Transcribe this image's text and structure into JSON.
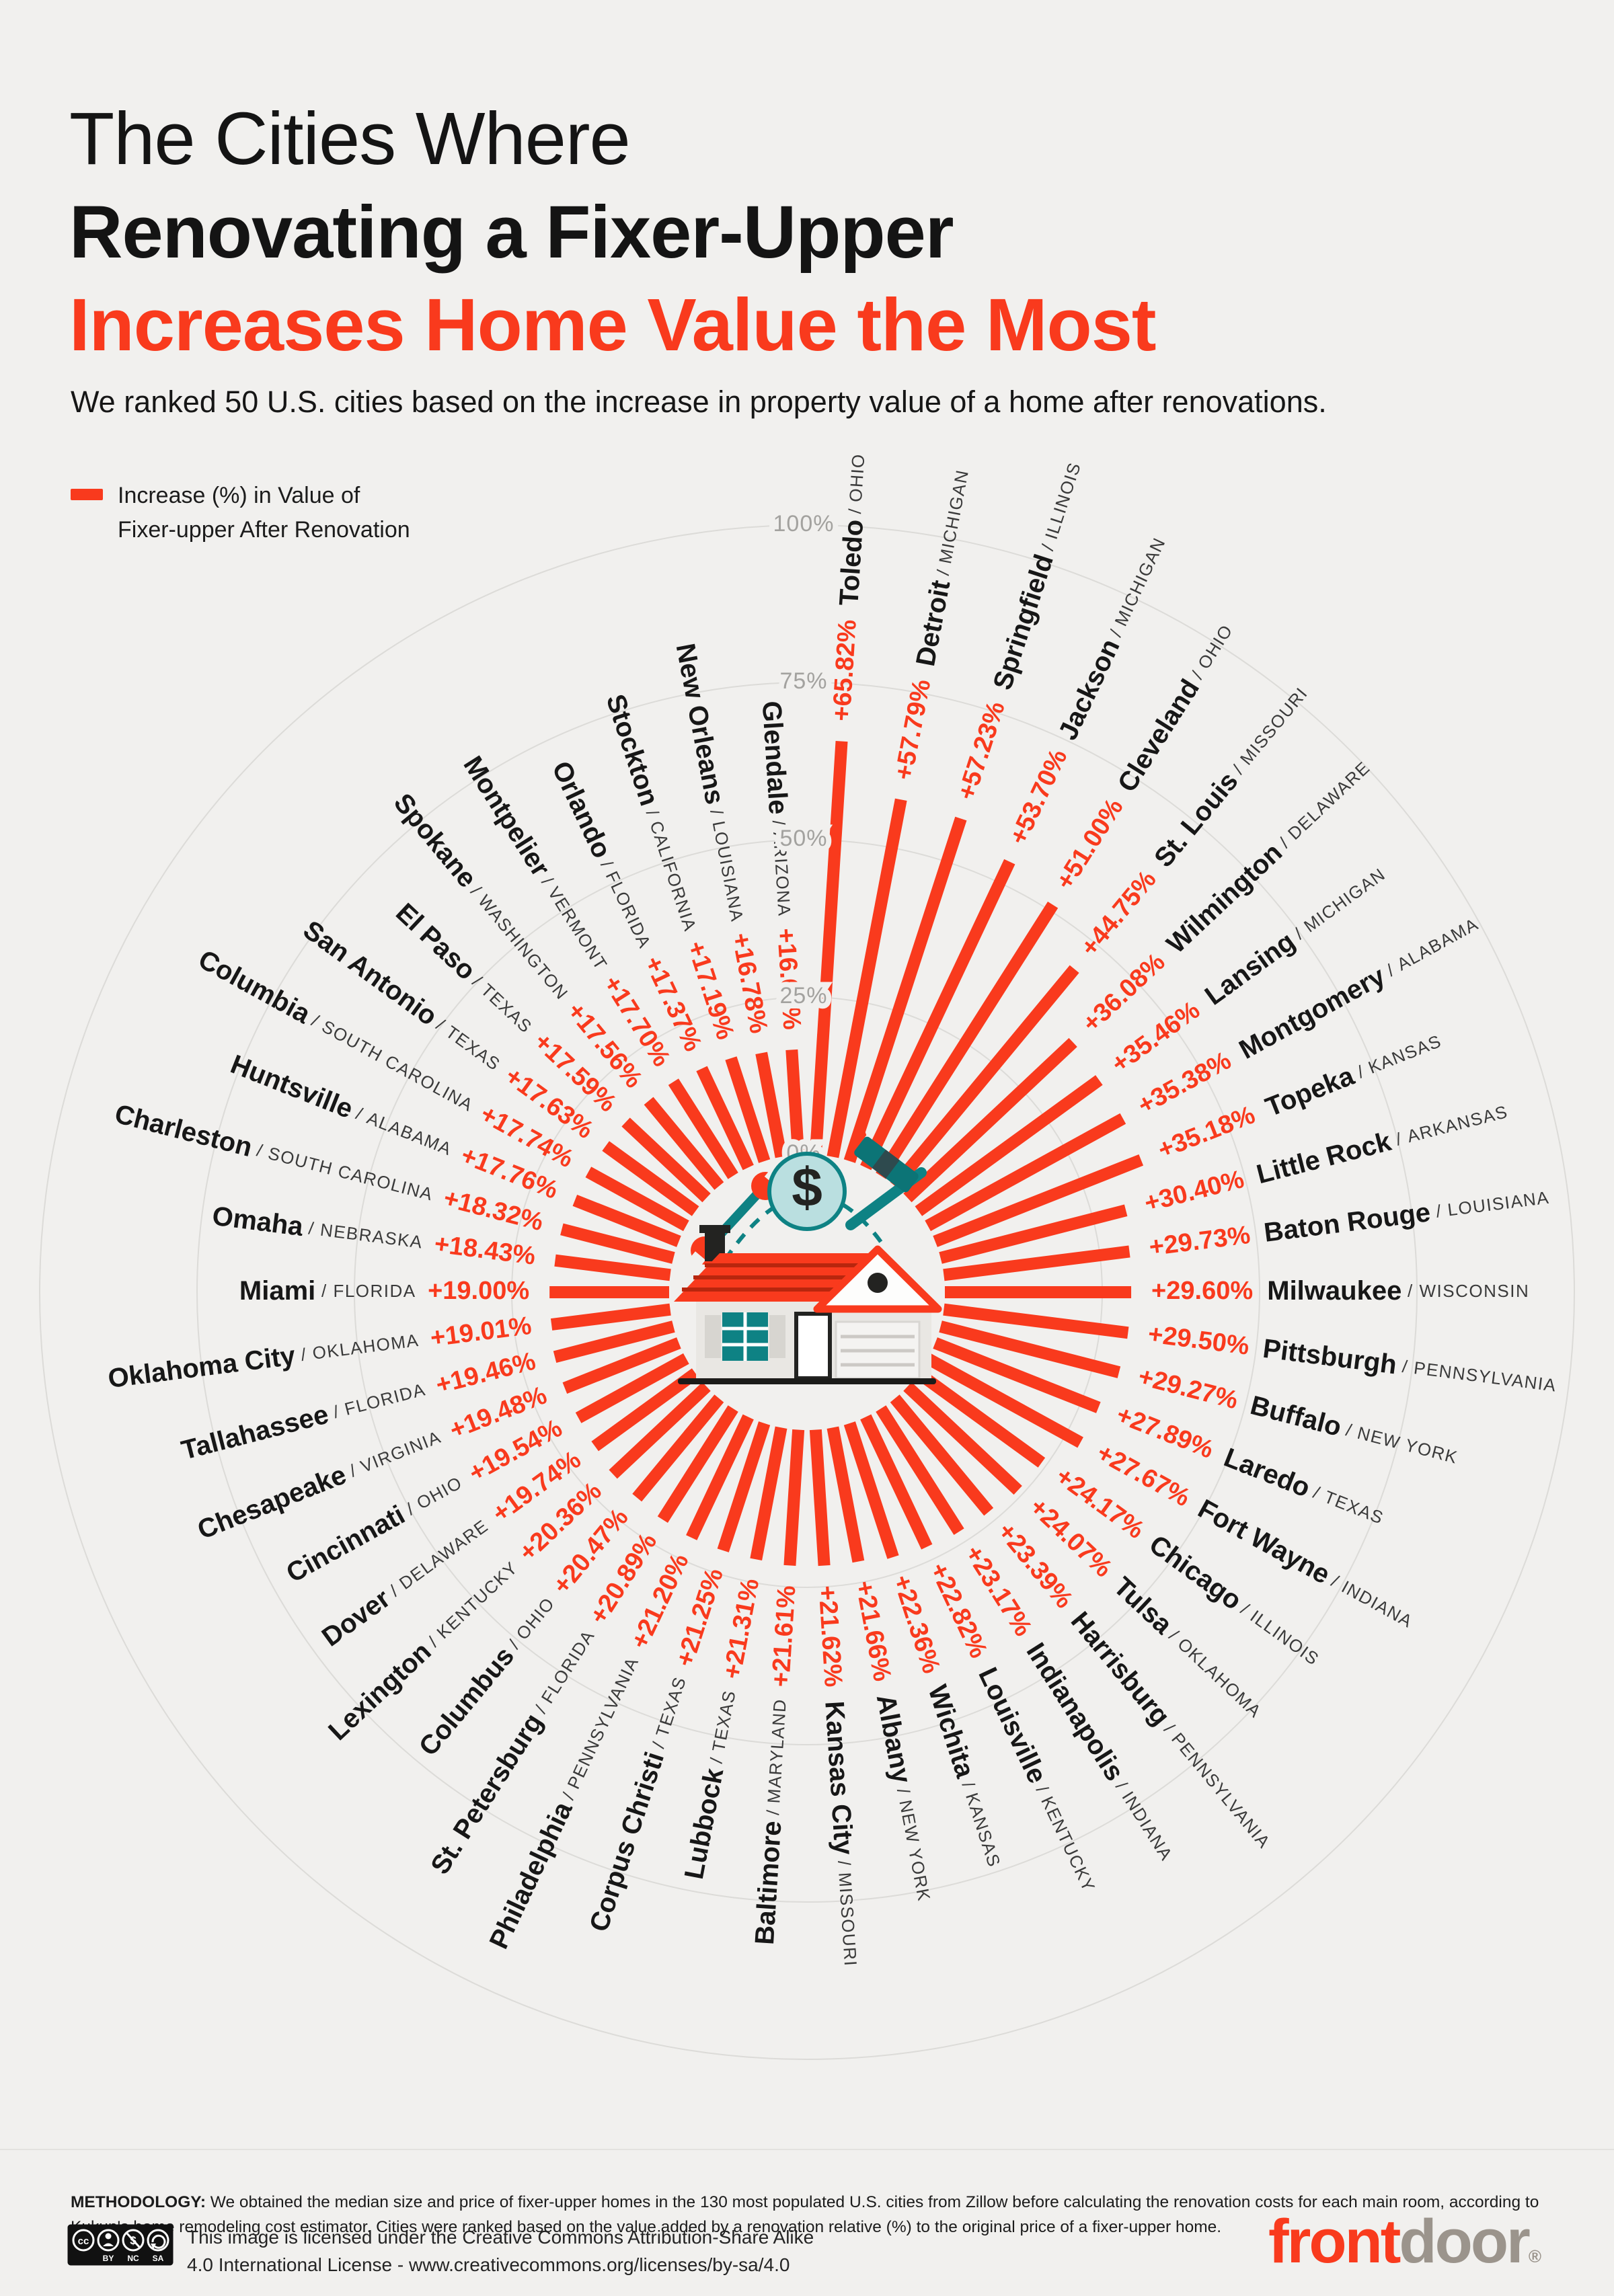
{
  "title": {
    "line1": "The Cities Where",
    "line2": "Renovating a Fixer-Upper",
    "line3": "Increases Home Value the Most"
  },
  "subtitle": "We ranked 50 U.S. cities based on the increase in property value of a home after renovations.",
  "legend": {
    "line1": "Increase (%) in Value of",
    "line2": "Fixer-upper After Renovation"
  },
  "colors": {
    "accent": "#f93a1d",
    "background": "#f1f0ee",
    "grid": "#dcdbd8",
    "tick": "#a3a29f",
    "city": "#171717",
    "state": "#3a3a3a",
    "teal": "#0e8284",
    "teal_light": "#badfe0",
    "dark": "#232321",
    "roof_stripe": "#b8260e",
    "wall": "#e9e7e3",
    "logo_gray": "#9b948c"
  },
  "center_icon": {
    "name": "house-renovation-illustration",
    "dollar_sign": "$"
  },
  "chart_data": {
    "type": "radial_bar",
    "title": "Increase (%) in Value of Fixer-upper After Renovation",
    "unit": "%",
    "axis_range": [
      0,
      100
    ],
    "direction": "clockwise",
    "start_angle_deg": 3.6,
    "step_angle_deg": 7.2,
    "grid_ticks": [
      {
        "label": "0%",
        "value": 0
      },
      {
        "label": "25%",
        "value": 25
      },
      {
        "label": "50%",
        "value": 50
      },
      {
        "label": "75%",
        "value": 75
      },
      {
        "label": "100%",
        "value": 100
      }
    ],
    "series": [
      {
        "city": "Toledo",
        "state": "OHIO",
        "value": 65.82,
        "label": "+65.82%"
      },
      {
        "city": "Detroit",
        "state": "MICHIGAN",
        "value": 57.79,
        "label": "+57.79%"
      },
      {
        "city": "Springfield",
        "state": "ILLINOIS",
        "value": 57.23,
        "label": "+57.23%"
      },
      {
        "city": "Jackson",
        "state": "MICHIGAN",
        "value": 53.7,
        "label": "+53.70%"
      },
      {
        "city": "Cleveland",
        "state": "OHIO",
        "value": 51.0,
        "label": "+51.00%"
      },
      {
        "city": "St. Louis",
        "state": "MISSOURI",
        "value": 44.75,
        "label": "+44.75%"
      },
      {
        "city": "Wilmington",
        "state": "DELAWARE",
        "value": 36.08,
        "label": "+36.08%"
      },
      {
        "city": "Lansing",
        "state": "MICHIGAN",
        "value": 35.46,
        "label": "+35.46%"
      },
      {
        "city": "Montgomery",
        "state": "ALABAMA",
        "value": 35.38,
        "label": "+35.38%"
      },
      {
        "city": "Topeka",
        "state": "KANSAS",
        "value": 35.18,
        "label": "+35.18%"
      },
      {
        "city": "Little Rock",
        "state": "ARKANSAS",
        "value": 30.4,
        "label": "+30.40%"
      },
      {
        "city": "Baton Rouge",
        "state": "LOUISIANA",
        "value": 29.73,
        "label": "+29.73%"
      },
      {
        "city": "Milwaukee",
        "state": "WISCONSIN",
        "value": 29.6,
        "label": "+29.60%"
      },
      {
        "city": "Pittsburgh",
        "state": "PENNSYLVANIA",
        "value": 29.5,
        "label": "+29.50%"
      },
      {
        "city": "Buffalo",
        "state": "NEW YORK",
        "value": 29.27,
        "label": "+29.27%"
      },
      {
        "city": "Laredo",
        "state": "TEXAS",
        "value": 27.89,
        "label": "+27.89%"
      },
      {
        "city": "Fort Wayne",
        "state": "INDIANA",
        "value": 27.67,
        "label": "+27.67%"
      },
      {
        "city": "Chicago",
        "state": "ILLINOIS",
        "value": 24.17,
        "label": "+24.17%"
      },
      {
        "city": "Tulsa",
        "state": "OKLAHOMA",
        "value": 24.07,
        "label": "+24.07%"
      },
      {
        "city": "Harrisburg",
        "state": "PENNSYLVANIA",
        "value": 23.39,
        "label": "+23.39%"
      },
      {
        "city": "Indianapolis",
        "state": "INDIANA",
        "value": 23.17,
        "label": "+23.17%"
      },
      {
        "city": "Louisville",
        "state": "KENTUCKY",
        "value": 22.82,
        "label": "+22.82%"
      },
      {
        "city": "Wichita",
        "state": "KANSAS",
        "value": 22.36,
        "label": "+22.36%"
      },
      {
        "city": "Albany",
        "state": "NEW YORK",
        "value": 21.66,
        "label": "+21.66%"
      },
      {
        "city": "Kansas City",
        "state": "MISSOURI",
        "value": 21.62,
        "label": "+21.62%"
      },
      {
        "city": "Baltimore",
        "state": "MARYLAND",
        "value": 21.61,
        "label": "+21.61%"
      },
      {
        "city": "Lubbock",
        "state": "TEXAS",
        "value": 21.31,
        "label": "+21.31%"
      },
      {
        "city": "Corpus Christi",
        "state": "TEXAS",
        "value": 21.25,
        "label": "+21.25%"
      },
      {
        "city": "Philadelphia",
        "state": "PENNSYLVANIA",
        "value": 21.2,
        "label": "+21.20%"
      },
      {
        "city": "St. Petersburg",
        "state": "FLORIDA",
        "value": 20.89,
        "label": "+20.89%"
      },
      {
        "city": "Columbus",
        "state": "OHIO",
        "value": 20.47,
        "label": "+20.47%"
      },
      {
        "city": "Lexington",
        "state": "KENTUCKY",
        "value": 20.36,
        "label": "+20.36%"
      },
      {
        "city": "Dover",
        "state": "DELAWARE",
        "value": 19.74,
        "label": "+19.74%"
      },
      {
        "city": "Cincinnati",
        "state": "OHIO",
        "value": 19.54,
        "label": "+19.54%"
      },
      {
        "city": "Chesapeake",
        "state": "VIRGINIA",
        "value": 19.48,
        "label": "+19.48%"
      },
      {
        "city": "Tallahassee",
        "state": "FLORIDA",
        "value": 19.46,
        "label": "+19.46%"
      },
      {
        "city": "Oklahoma City",
        "state": "OKLAHOMA",
        "value": 19.01,
        "label": "+19.01%"
      },
      {
        "city": "Miami",
        "state": "FLORIDA",
        "value": 19.0,
        "label": "+19.00%"
      },
      {
        "city": "Omaha",
        "state": "NEBRASKA",
        "value": 18.43,
        "label": "+18.43%"
      },
      {
        "city": "Charleston",
        "state": "SOUTH CAROLINA",
        "value": 18.32,
        "label": "+18.32%"
      },
      {
        "city": "Huntsville",
        "state": "ALABAMA",
        "value": 17.76,
        "label": "+17.76%"
      },
      {
        "city": "Columbia",
        "state": "SOUTH CAROLINA",
        "value": 17.74,
        "label": "+17.74%"
      },
      {
        "city": "San Antonio",
        "state": "TEXAS",
        "value": 17.63,
        "label": "+17.63%"
      },
      {
        "city": "El Paso",
        "state": "TEXAS",
        "value": 17.59,
        "label": "+17.59%"
      },
      {
        "city": "Spokane",
        "state": "WASHINGTON",
        "value": 17.56,
        "label": "+17.56%"
      },
      {
        "city": "Montpelier",
        "state": "VERMONT",
        "value": 17.7,
        "label": "+17.70%"
      },
      {
        "city": "Orlando",
        "state": "FLORIDA",
        "value": 17.37,
        "label": "+17.37%"
      },
      {
        "city": "Stockton",
        "state": "CALIFORNIA",
        "value": 17.19,
        "label": "+17.19%"
      },
      {
        "city": "New Orleans",
        "state": "LOUISIANA",
        "value": 16.78,
        "label": "+16.78%"
      },
      {
        "city": "Glendale",
        "state": "ARIZONA",
        "value": 16.69,
        "label": "+16.69%"
      }
    ]
  },
  "footer": {
    "methodology_label": "METHODOLOGY:",
    "methodology_text": " We obtained the median size and price of fixer-upper homes in the 130 most populated U.S. cities from Zillow before calculating the renovation costs for each main room, according to Kukun's home remodeling cost estimator. Cities were ranked based on the value added by a renovation relative (%) to the original price of a fixer-upper home.",
    "license_line1": "This image is licensed under the Creative Commons Attribution-Share Alike",
    "license_line2": "4.0 International License - www.creativecommons.org/licenses/by-sa/4.0",
    "license_badges": [
      "CC",
      "BY",
      "NC",
      "SA"
    ],
    "logo": {
      "part1": "front",
      "part2": "door",
      "registered": "®"
    }
  }
}
